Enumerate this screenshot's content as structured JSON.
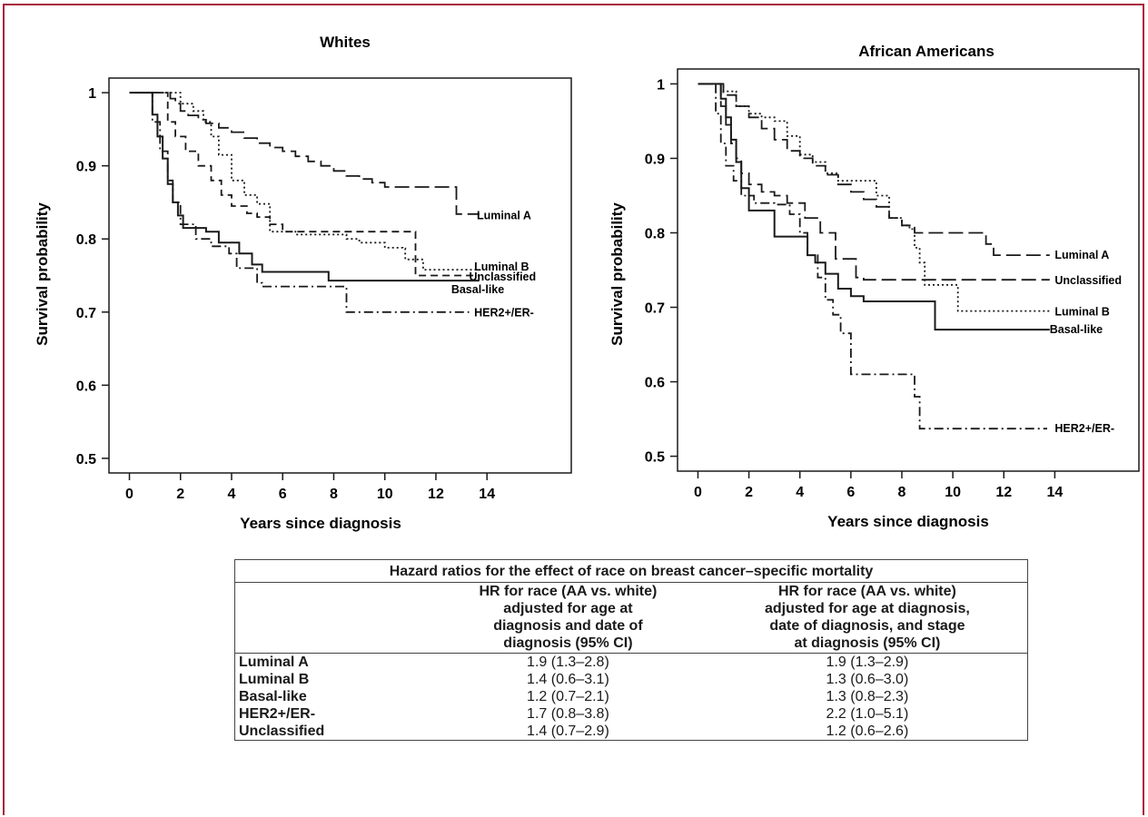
{
  "chart_data": [
    {
      "type": "line",
      "title": "Whites",
      "xlabel": "Years since diagnosis",
      "ylabel": "Survival probability",
      "xlim": [
        -0.8,
        17.3
      ],
      "ylim": [
        0.48,
        1.02
      ],
      "xticks": [
        0,
        2,
        4,
        6,
        8,
        10,
        12,
        14
      ],
      "yticks": [
        0.5,
        0.6,
        0.7,
        0.8,
        0.9,
        1
      ],
      "ytick_labels": [
        "0.5",
        "0.6",
        "0.7",
        "0.8",
        "0.9",
        "1"
      ],
      "series": [
        {
          "name": "Luminal A",
          "label_pos": [
            13.6,
            0.832
          ],
          "style": "long-dash",
          "points": [
            [
              0,
              1
            ],
            [
              1.4,
              1
            ],
            [
              1.6,
              0.992
            ],
            [
              1.8,
              0.985
            ],
            [
              2,
              0.975
            ],
            [
              2.3,
              0.969
            ],
            [
              2.7,
              0.963
            ],
            [
              3,
              0.958
            ],
            [
              3.5,
              0.952
            ],
            [
              4,
              0.946
            ],
            [
              4.5,
              0.938
            ],
            [
              5,
              0.931
            ],
            [
              5.5,
              0.925
            ],
            [
              6,
              0.92
            ],
            [
              6.5,
              0.913
            ],
            [
              7,
              0.906
            ],
            [
              7.5,
              0.9
            ],
            [
              8,
              0.893
            ],
            [
              8.5,
              0.886
            ],
            [
              9,
              0.882
            ],
            [
              9.5,
              0.877
            ],
            [
              10,
              0.871
            ],
            [
              11,
              0.871
            ],
            [
              12.5,
              0.871
            ],
            [
              12.8,
              0.834
            ],
            [
              13.7,
              0.834
            ]
          ]
        },
        {
          "name": "Luminal B",
          "label_pos": [
            13.5,
            0.762
          ],
          "style": "dotted",
          "points": [
            [
              0,
              1
            ],
            [
              1.9,
              1
            ],
            [
              2,
              0.985
            ],
            [
              2.5,
              0.975
            ],
            [
              2.9,
              0.96
            ],
            [
              3.2,
              0.94
            ],
            [
              3.5,
              0.915
            ],
            [
              4,
              0.88
            ],
            [
              4.5,
              0.86
            ],
            [
              5,
              0.848
            ],
            [
              5.5,
              0.81
            ],
            [
              6.5,
              0.806
            ],
            [
              8,
              0.806
            ],
            [
              8.5,
              0.8
            ],
            [
              9,
              0.795
            ],
            [
              10,
              0.788
            ],
            [
              10.7,
              0.787
            ],
            [
              10.8,
              0.772
            ],
            [
              11.4,
              0.772
            ],
            [
              11.5,
              0.758
            ],
            [
              13.7,
              0.758
            ]
          ]
        },
        {
          "name": "Unclassified",
          "label_pos": [
            13.3,
            0.748
          ],
          "style": "dash",
          "points": [
            [
              0,
              1
            ],
            [
              1.2,
              1
            ],
            [
              1.5,
              0.96
            ],
            [
              1.8,
              0.94
            ],
            [
              2.2,
              0.92
            ],
            [
              2.7,
              0.9
            ],
            [
              3.2,
              0.88
            ],
            [
              3.6,
              0.86
            ],
            [
              4,
              0.845
            ],
            [
              4.6,
              0.835
            ],
            [
              5,
              0.83
            ],
            [
              5.5,
              0.82
            ],
            [
              6,
              0.81
            ],
            [
              10,
              0.81
            ],
            [
              11.1,
              0.81
            ],
            [
              11.2,
              0.75
            ],
            [
              13.7,
              0.75
            ]
          ]
        },
        {
          "name": "Basal-like",
          "label_pos": [
            12.6,
            0.731
          ],
          "style": "solid",
          "points": [
            [
              0,
              1
            ],
            [
              0.6,
              1
            ],
            [
              0.9,
              0.97
            ],
            [
              1.1,
              0.94
            ],
            [
              1.3,
              0.91
            ],
            [
              1.5,
              0.875
            ],
            [
              1.7,
              0.85
            ],
            [
              1.9,
              0.832
            ],
            [
              2.1,
              0.815
            ],
            [
              3,
              0.81
            ],
            [
              3.5,
              0.795
            ],
            [
              4.3,
              0.78
            ],
            [
              4.8,
              0.765
            ],
            [
              5.2,
              0.755
            ],
            [
              7.7,
              0.755
            ],
            [
              7.8,
              0.743
            ],
            [
              13.7,
              0.743
            ]
          ]
        },
        {
          "name": "HER2+/ER-",
          "label_pos": [
            13.5,
            0.699
          ],
          "style": "dash-dot",
          "points": [
            [
              0,
              1
            ],
            [
              0.6,
              1
            ],
            [
              0.9,
              0.96
            ],
            [
              1.2,
              0.92
            ],
            [
              1.5,
              0.88
            ],
            [
              1.7,
              0.85
            ],
            [
              2,
              0.82
            ],
            [
              2.6,
              0.8
            ],
            [
              3.2,
              0.79
            ],
            [
              3.9,
              0.78
            ],
            [
              4.2,
              0.76
            ],
            [
              5,
              0.74
            ],
            [
              5.2,
              0.735
            ],
            [
              8.2,
              0.735
            ],
            [
              8.5,
              0.7
            ],
            [
              13.3,
              0.7
            ]
          ]
        }
      ]
    },
    {
      "type": "line",
      "title": "African Americans",
      "xlabel": "Years since diagnosis",
      "ylabel": "Survival probability",
      "xlim": [
        -0.8,
        17.3
      ],
      "ylim": [
        0.48,
        1.02
      ],
      "xticks": [
        0,
        2,
        4,
        6,
        8,
        10,
        12,
        14
      ],
      "yticks": [
        0.5,
        0.6,
        0.7,
        0.8,
        0.9,
        1
      ],
      "ytick_labels": [
        "0.5",
        "0.6",
        "0.7",
        "0.8",
        "0.9",
        "1"
      ],
      "series": [
        {
          "name": "Luminal A",
          "label_pos": [
            14,
            0.77
          ],
          "style": "long-dash",
          "points": [
            [
              0,
              1
            ],
            [
              0.5,
              1
            ],
            [
              1,
              0.985
            ],
            [
              1.5,
              0.97
            ],
            [
              2,
              0.955
            ],
            [
              2.5,
              0.94
            ],
            [
              3,
              0.925
            ],
            [
              3.5,
              0.91
            ],
            [
              4,
              0.9
            ],
            [
              4.5,
              0.89
            ],
            [
              5,
              0.878
            ],
            [
              5.5,
              0.865
            ],
            [
              6,
              0.855
            ],
            [
              6.5,
              0.845
            ],
            [
              7,
              0.835
            ],
            [
              7.5,
              0.82
            ],
            [
              8,
              0.81
            ],
            [
              8.5,
              0.8
            ],
            [
              11,
              0.8
            ],
            [
              11.3,
              0.785
            ],
            [
              11.6,
              0.77
            ],
            [
              13.8,
              0.77
            ]
          ]
        },
        {
          "name": "Unclassified",
          "label_pos": [
            14,
            0.736
          ],
          "style": "long-dash",
          "points": [
            [
              0,
              1
            ],
            [
              0.7,
              1
            ],
            [
              0.9,
              0.97
            ],
            [
              1.1,
              0.945
            ],
            [
              1.3,
              0.92
            ],
            [
              1.5,
              0.9
            ],
            [
              1.7,
              0.88
            ],
            [
              2,
              0.865
            ],
            [
              2.5,
              0.855
            ],
            [
              3,
              0.85
            ],
            [
              3.5,
              0.84
            ],
            [
              4.2,
              0.82
            ],
            [
              4.8,
              0.8
            ],
            [
              5.4,
              0.765
            ],
            [
              6.2,
              0.74
            ],
            [
              6.5,
              0.737
            ],
            [
              13.8,
              0.737
            ]
          ]
        },
        {
          "name": "Luminal B",
          "label_pos": [
            14,
            0.694
          ],
          "style": "dotted",
          "points": [
            [
              0,
              1
            ],
            [
              0.8,
              1
            ],
            [
              1,
              0.99
            ],
            [
              1.5,
              0.97
            ],
            [
              2,
              0.96
            ],
            [
              2.5,
              0.955
            ],
            [
              3,
              0.95
            ],
            [
              3.5,
              0.93
            ],
            [
              4,
              0.905
            ],
            [
              4.5,
              0.895
            ],
            [
              5,
              0.88
            ],
            [
              5.5,
              0.87
            ],
            [
              6.5,
              0.87
            ],
            [
              7,
              0.85
            ],
            [
              7.5,
              0.82
            ],
            [
              8,
              0.81
            ],
            [
              8.3,
              0.805
            ],
            [
              8.5,
              0.78
            ],
            [
              8.7,
              0.76
            ],
            [
              8.9,
              0.73
            ],
            [
              10,
              0.73
            ],
            [
              10.2,
              0.695
            ],
            [
              13.8,
              0.695
            ]
          ]
        },
        {
          "name": "Basal-like",
          "label_pos": [
            13.8,
            0.67
          ],
          "style": "solid",
          "points": [
            [
              0,
              1
            ],
            [
              0.7,
              1
            ],
            [
              0.9,
              0.98
            ],
            [
              1.1,
              0.955
            ],
            [
              1.3,
              0.925
            ],
            [
              1.5,
              0.895
            ],
            [
              1.7,
              0.86
            ],
            [
              2,
              0.83
            ],
            [
              2.5,
              0.83
            ],
            [
              3,
              0.795
            ],
            [
              4,
              0.795
            ],
            [
              4.3,
              0.77
            ],
            [
              4.6,
              0.76
            ],
            [
              5,
              0.745
            ],
            [
              5.5,
              0.725
            ],
            [
              6,
              0.715
            ],
            [
              6.5,
              0.708
            ],
            [
              9,
              0.708
            ],
            [
              9.3,
              0.67
            ],
            [
              13.8,
              0.67
            ]
          ]
        },
        {
          "name": "HER2+/ER-",
          "label_pos": [
            14,
            0.537
          ],
          "style": "dash-dot",
          "points": [
            [
              0,
              1
            ],
            [
              0.5,
              1
            ],
            [
              0.7,
              0.96
            ],
            [
              0.9,
              0.92
            ],
            [
              1.1,
              0.89
            ],
            [
              1.4,
              0.87
            ],
            [
              1.7,
              0.85
            ],
            [
              2.2,
              0.84
            ],
            [
              3,
              0.838
            ],
            [
              3.6,
              0.825
            ],
            [
              4,
              0.8
            ],
            [
              4.3,
              0.77
            ],
            [
              4.7,
              0.74
            ],
            [
              5,
              0.71
            ],
            [
              5.3,
              0.69
            ],
            [
              5.6,
              0.665
            ],
            [
              6,
              0.61
            ],
            [
              8.3,
              0.61
            ],
            [
              8.5,
              0.58
            ],
            [
              8.7,
              0.537
            ],
            [
              13.7,
              0.537
            ]
          ]
        }
      ]
    }
  ],
  "table": {
    "caption": "Hazard ratios for the effect of race on breast cancer–specific mortality",
    "headers": [
      "",
      "HR for race (AA vs. white) adjusted for age at diagnosis and date of diagnosis (95% CI)",
      "HR for race (AA vs. white) adjusted for age at diagnosis, date of diagnosis, and stage at diagnosis (95% CI)"
    ],
    "header_lines": [
      [],
      [
        "HR for race (AA vs. white)",
        "adjusted for age at",
        "diagnosis and date of",
        "diagnosis (95% CI)"
      ],
      [
        "HR for race (AA vs. white)",
        "adjusted for age at diagnosis,",
        "date of diagnosis, and stage",
        "at diagnosis (95% CI)"
      ]
    ],
    "rows": [
      {
        "label": "Luminal A",
        "values": [
          "1.9 (1.3–2.8)",
          "1.9 (1.3–2.9)"
        ]
      },
      {
        "label": "Luminal B",
        "values": [
          "1.4 (0.6–3.1)",
          "1.3 (0.6–3.0)"
        ]
      },
      {
        "label": "Basal-like",
        "values": [
          "1.2 (0.7–2.1)",
          "1.3 (0.8–2.3)"
        ]
      },
      {
        "label": "HER2+/ER-",
        "values": [
          "1.7 (0.8–3.8)",
          "2.2 (1.0–5.1)"
        ]
      },
      {
        "label": "Unclassified",
        "values": [
          "1.4 (0.7–2.9)",
          "1.2 (0.6–2.6)"
        ]
      }
    ]
  },
  "colors": {
    "frame": "#a8203a",
    "ink": "#1a1a1a"
  }
}
